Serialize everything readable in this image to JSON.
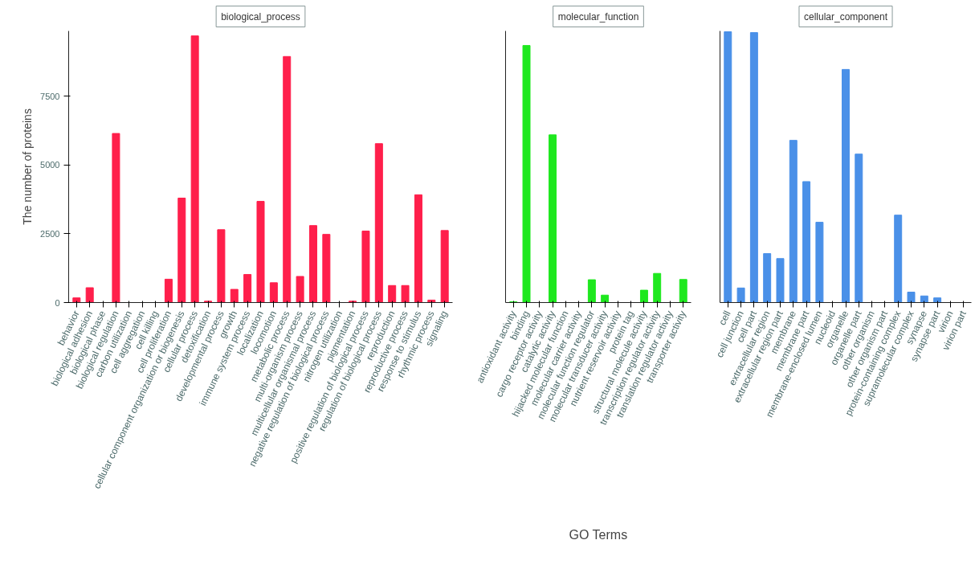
{
  "chart_data": [
    {
      "type": "bar",
      "title": "biological_process",
      "ylabel": "The number of proteins",
      "categories": [
        "behavior",
        "biological adhesion",
        "biological phase",
        "biological regulation",
        "carbon utilization",
        "cell aggregation",
        "cell killing",
        "cell proliferation",
        "cellular component organization or biogenesis",
        "cellular process",
        "detoxification",
        "developmental process",
        "growth",
        "immune system process",
        "localization",
        "locomotion",
        "metabolic process",
        "multi-organism process",
        "multicellular organismal process",
        "negative regulation of biological process",
        "nitrogen utilization",
        "pigmentation",
        "positive regulation of biological process",
        "regulation of biological process",
        "reproduction",
        "reproductive process",
        "response to stimulus",
        "rhythmic process",
        "signaling"
      ],
      "values": [
        170,
        540,
        0,
        6150,
        0,
        0,
        0,
        850,
        3800,
        9700,
        50,
        2650,
        480,
        1020,
        3680,
        720,
        8950,
        950,
        2800,
        2480,
        0,
        50,
        2600,
        5780,
        620,
        620,
        3920,
        90,
        2620
      ],
      "color": "#ff1f4b",
      "ylim": [
        0,
        9880
      ],
      "yticks": [
        0,
        2500,
        5000,
        7500
      ],
      "grid": false
    },
    {
      "type": "bar",
      "title": "molecular_function",
      "xlabel": "GO Terms",
      "categories": [
        "antioxidant activity",
        "binding",
        "cargo receptor activity",
        "catalytic activity",
        "hijacked molecular function",
        "molecular carrier activity",
        "molecular function regulator",
        "molecular transducer activity",
        "nutrient reservoir activity",
        "protein tag",
        "structural molecule activity",
        "transcription regulator activity",
        "translation regulator activity",
        "transporter activity"
      ],
      "values": [
        30,
        9350,
        0,
        6100,
        0,
        0,
        830,
        270,
        0,
        0,
        450,
        1060,
        0,
        840
      ],
      "color": "#1ee81e",
      "ylim": [
        0,
        9880
      ],
      "yticks": [
        0,
        2500,
        5000,
        7500
      ],
      "tick_labels": "x",
      "grid": false
    },
    {
      "type": "bar",
      "title": "cellular_component",
      "categories": [
        "cell",
        "cell junction",
        "cell part",
        "extracellular region",
        "extracellular region part",
        "membrane",
        "membrane part",
        "membrane-enclosed lumen",
        "nucleoid",
        "organelle",
        "organelle part",
        "other organism",
        "other organism part",
        "protein-containing complex",
        "supramolecular complex",
        "synapse",
        "synapse part",
        "virion",
        "virion part"
      ],
      "values": [
        9850,
        530,
        9820,
        1780,
        1600,
        5900,
        4400,
        2920,
        0,
        8480,
        5400,
        0,
        0,
        3180,
        380,
        240,
        170,
        0,
        0
      ],
      "color": "#4a90e8",
      "ylim": [
        0,
        9880
      ],
      "yticks": [
        0,
        2500,
        5000,
        7500
      ],
      "tick_labels": "x",
      "grid": false
    }
  ]
}
